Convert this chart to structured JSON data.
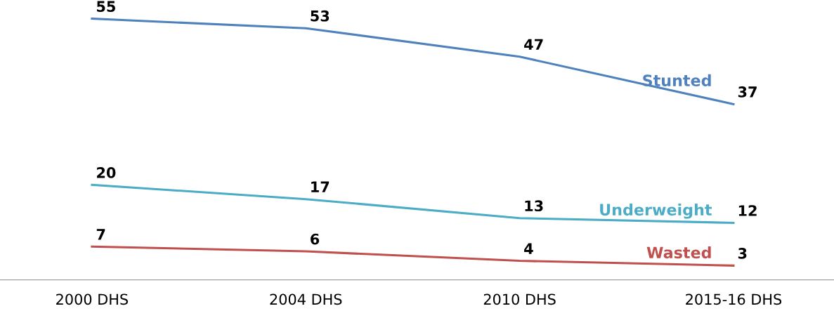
{
  "chart_data": {
    "type": "line",
    "categories": [
      "2000 DHS",
      "2004 DHS",
      "2010 DHS",
      "2015-16 DHS"
    ],
    "series": [
      {
        "name": "Stunted",
        "color": "#4f81bd",
        "values": [
          55,
          53,
          47,
          37
        ]
      },
      {
        "name": "Underweight",
        "color": "#4bacc6",
        "values": [
          20,
          17,
          13,
          12
        ]
      },
      {
        "name": "Wasted",
        "color": "#c0504d",
        "values": [
          7,
          6,
          4,
          3
        ]
      }
    ],
    "tick_labels": "x",
    "data_labels": true,
    "legend": false,
    "grid": false,
    "marker": "none",
    "line_style": "solid"
  }
}
